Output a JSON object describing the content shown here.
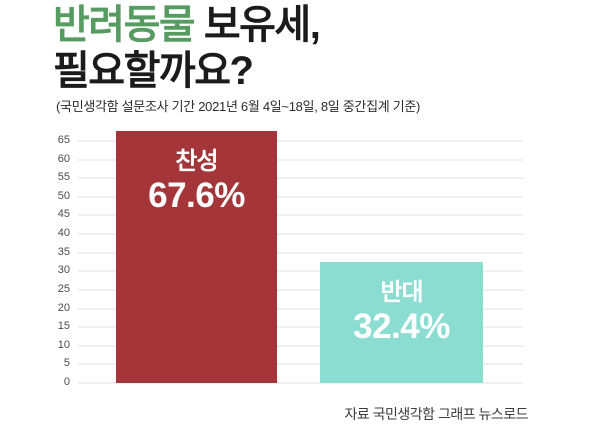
{
  "header": {
    "title_highlight": "반려동물",
    "title_rest": " 보유세,",
    "title_line2": "필요할까요?",
    "subtitle": "(국민생각함 설문조사 기간 2021년 6월 4일~18일, 8일 중간집계 기준)"
  },
  "chart_data": {
    "type": "bar",
    "title": "반려동물 보유세, 필요할까요?",
    "categories": [
      "찬성",
      "반대"
    ],
    "values": [
      67.6,
      32.4
    ],
    "value_labels": [
      "67.6%",
      "32.4%"
    ],
    "bar_colors": [
      "#a43538",
      "#8bdcd1"
    ],
    "xlabel": "",
    "ylabel": "",
    "ylim": [
      0,
      65
    ],
    "ytick_step": 5,
    "grid": true,
    "legend": "none"
  },
  "footer": {
    "source": "자료 국민생각함 그래프 뉴스로드"
  },
  "colors": {
    "title_highlight": "#569c60",
    "title_text": "#1b1b1b",
    "bar_agree": "#a43538",
    "bar_oppose": "#8bdcd1",
    "bar_label_text": "#ffffff",
    "gridline": "#efefef",
    "tick_label": "#4b4b4b",
    "source_text": "#3c3c3c"
  }
}
